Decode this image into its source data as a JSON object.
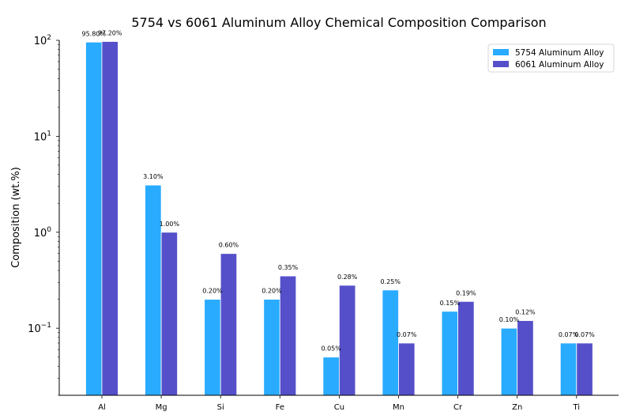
{
  "chart_data": {
    "type": "bar",
    "title": "5754 vs 6061 Aluminum Alloy Chemical Composition Comparison",
    "xlabel": "",
    "ylabel": "Composition (wt.%)",
    "yscale": "log",
    "ylim": [
      0.02,
      100
    ],
    "yticks": [
      {
        "value": 0.1,
        "base": "10",
        "exp": "−1"
      },
      {
        "value": 1,
        "base": "10",
        "exp": "0"
      },
      {
        "value": 10,
        "base": "10",
        "exp": "1"
      },
      {
        "value": 100,
        "base": "10",
        "exp": "2"
      }
    ],
    "grid": false,
    "legend_position": "top-right",
    "categories": [
      "Al",
      "Mg",
      "Si",
      "Fe",
      "Cu",
      "Mn",
      "Cr",
      "Zn",
      "Ti"
    ],
    "series": [
      {
        "name": "5754 Aluminum Alloy",
        "color": "#29abff",
        "values": [
          95.8,
          3.1,
          0.2,
          0.2,
          0.05,
          0.25,
          0.15,
          0.1,
          0.07
        ],
        "labels": [
          "95.80%",
          "3.10%",
          "0.20%",
          "0.20%",
          "0.05%",
          "0.25%",
          "0.15%",
          "0.10%",
          "0.07%"
        ]
      },
      {
        "name": "6061 Aluminum Alloy",
        "color": "#5550c9",
        "values": [
          97.2,
          1.0,
          0.6,
          0.35,
          0.28,
          0.07,
          0.19,
          0.12,
          0.07
        ],
        "labels": [
          "97.20%",
          "1.00%",
          "0.60%",
          "0.35%",
          "0.28%",
          "0.07%",
          "0.19%",
          "0.12%",
          "0.07%"
        ]
      }
    ]
  }
}
